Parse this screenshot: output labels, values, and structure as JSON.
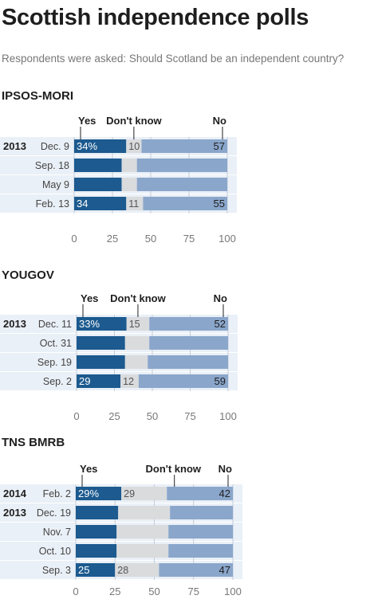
{
  "title": "Scottish independence polls",
  "subtitle": "Respondents were asked: Should Scotland be an independent country?",
  "colors": {
    "yes": "#1c5a8f",
    "dont_know": "#d9dbdd",
    "no": "#8aa6cb",
    "row_bg": "#eaf0f7",
    "text": "#222222",
    "axis_text": "#777777"
  },
  "chart_data": [
    {
      "type": "bar",
      "stacked": true,
      "orientation": "horizontal",
      "title": "IPSOS-MORI",
      "legend": [
        "Yes",
        "Don't know",
        "No"
      ],
      "xlim": [
        0,
        100
      ],
      "xticks": [
        0,
        25,
        50,
        75,
        100
      ],
      "rows": [
        {
          "year": "2013",
          "date": "Dec. 9",
          "yes": 34,
          "dk": 10,
          "no": 57,
          "yes_label": "34%",
          "dk_label": "10",
          "no_label": "57"
        },
        {
          "year": "",
          "date": "Sep. 18",
          "yes": 31,
          "dk": 10,
          "no": 59,
          "yes_label": "",
          "dk_label": "",
          "no_label": ""
        },
        {
          "year": "",
          "date": "May 9",
          "yes": 31,
          "dk": 10,
          "no": 59,
          "yes_label": "",
          "dk_label": "",
          "no_label": ""
        },
        {
          "year": "",
          "date": "Feb. 13",
          "yes": 34,
          "dk": 11,
          "no": 55,
          "yes_label": "34",
          "dk_label": "11",
          "no_label": "55"
        }
      ]
    },
    {
      "type": "bar",
      "stacked": true,
      "orientation": "horizontal",
      "title": "YOUGOV",
      "legend": [
        "Yes",
        "Don't know",
        "No"
      ],
      "xlim": [
        0,
        100
      ],
      "xticks": [
        0,
        25,
        50,
        75,
        100
      ],
      "rows": [
        {
          "year": "2013",
          "date": "Dec. 11",
          "yes": 33,
          "dk": 15,
          "no": 52,
          "yes_label": "33%",
          "dk_label": "15",
          "no_label": "52"
        },
        {
          "year": "",
          "date": "Oct. 31",
          "yes": 32,
          "dk": 16,
          "no": 52,
          "yes_label": "",
          "dk_label": "",
          "no_label": ""
        },
        {
          "year": "",
          "date": "Sep. 19",
          "yes": 32,
          "dk": 15,
          "no": 53,
          "yes_label": "",
          "dk_label": "",
          "no_label": ""
        },
        {
          "year": "",
          "date": "Sep. 2",
          "yes": 29,
          "dk": 12,
          "no": 59,
          "yes_label": "29",
          "dk_label": "12",
          "no_label": "59"
        }
      ]
    },
    {
      "type": "bar",
      "stacked": true,
      "orientation": "horizontal",
      "title": "TNS BMRB",
      "legend": [
        "Yes",
        "Don't know",
        "No"
      ],
      "xlim": [
        0,
        100
      ],
      "xticks": [
        0,
        25,
        50,
        75,
        100
      ],
      "rows": [
        {
          "year": "2014",
          "date": "Feb. 2",
          "yes": 29,
          "dk": 29,
          "no": 42,
          "yes_label": "29%",
          "dk_label": "29",
          "no_label": "42"
        },
        {
          "year": "2013",
          "date": "Dec. 19",
          "yes": 27,
          "dk": 33,
          "no": 40,
          "yes_label": "",
          "dk_label": "",
          "no_label": ""
        },
        {
          "year": "",
          "date": "Nov. 7",
          "yes": 26,
          "dk": 33,
          "no": 41,
          "yes_label": "",
          "dk_label": "",
          "no_label": ""
        },
        {
          "year": "",
          "date": "Oct. 10",
          "yes": 26,
          "dk": 33,
          "no": 41,
          "yes_label": "",
          "dk_label": "",
          "no_label": ""
        },
        {
          "year": "",
          "date": "Sep. 3",
          "yes": 25,
          "dk": 28,
          "no": 47,
          "yes_label": "25",
          "dk_label": "28",
          "no_label": "47"
        }
      ]
    }
  ]
}
